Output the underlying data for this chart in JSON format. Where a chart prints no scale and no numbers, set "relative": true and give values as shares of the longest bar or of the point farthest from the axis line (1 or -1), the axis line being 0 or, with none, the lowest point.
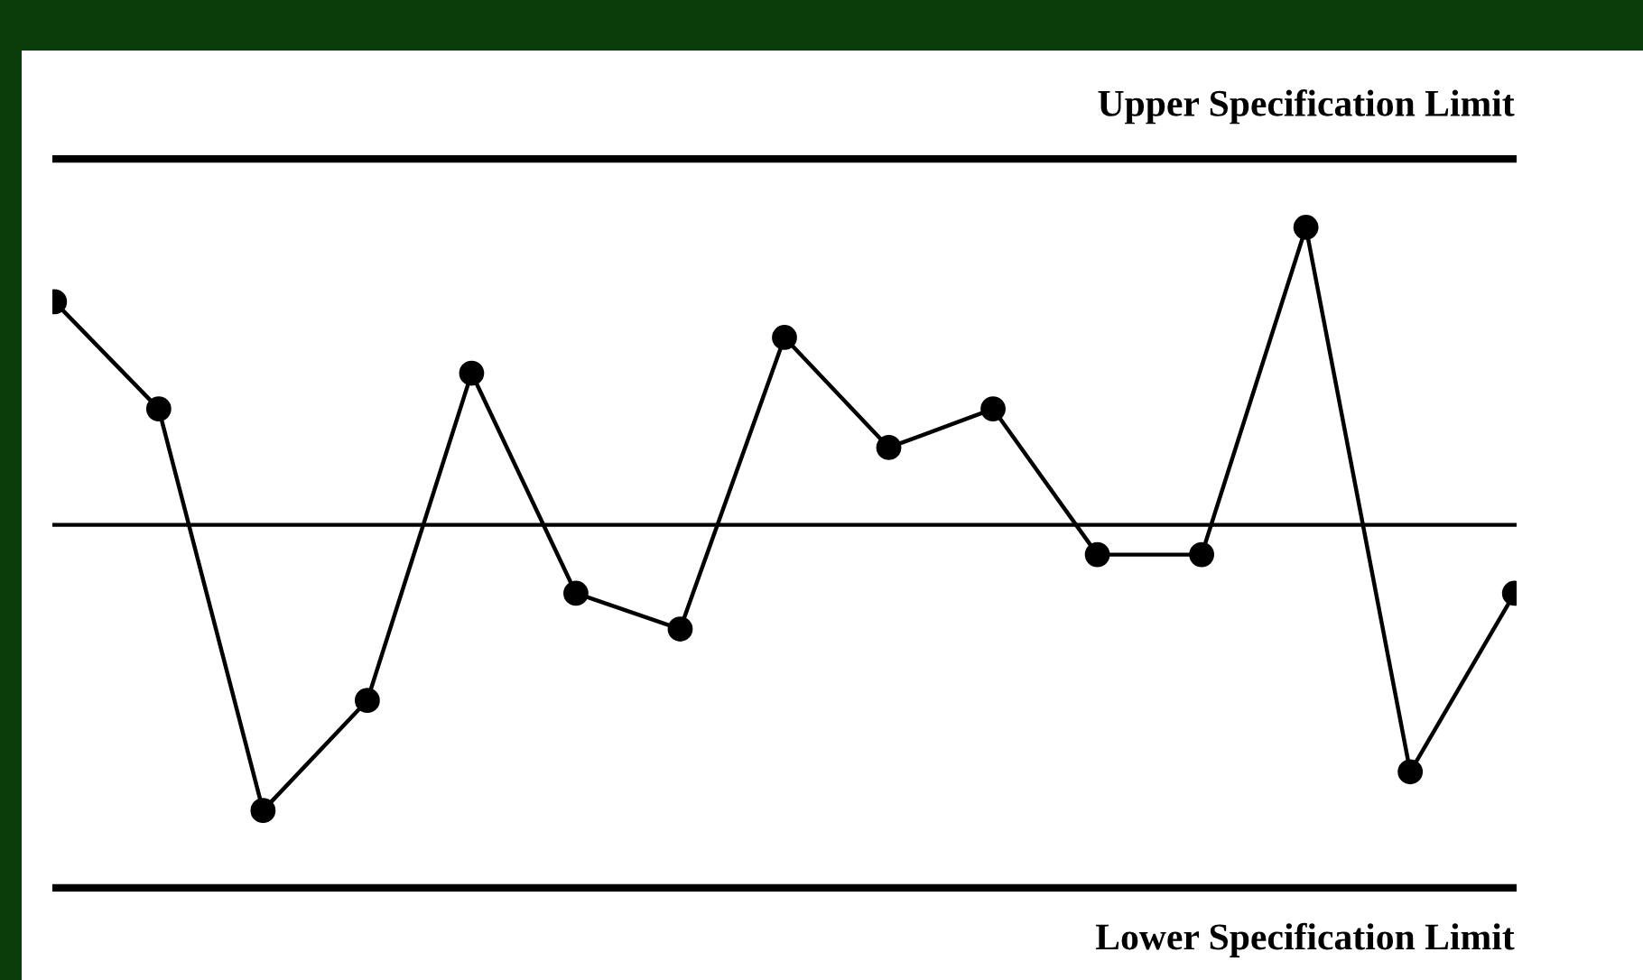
{
  "chart_data": {
    "type": "line",
    "relative": true,
    "categories": [
      null,
      null,
      null,
      null,
      null,
      null,
      null,
      null,
      null,
      null,
      null,
      null,
      null,
      null,
      null
    ],
    "series": [
      {
        "color": "#000000",
        "values": [
          0.75,
          0.39,
          -0.96,
          -0.59,
          0.51,
          -0.23,
          -0.35,
          0.63,
          0.26,
          0.39,
          -0.1,
          -0.1,
          1.0,
          -0.83,
          -0.23
        ]
      }
    ],
    "marker": "circle",
    "line_style": "solid",
    "ref_lines": [
      {
        "axis": "y",
        "value": 1.23,
        "label": "Upper Specification Limit",
        "color": "#000000"
      },
      {
        "axis": "y",
        "value": 0,
        "color": "#000000"
      },
      {
        "axis": "y",
        "value": -1.22,
        "label": "Lower Specification Limit",
        "color": "#000000"
      }
    ]
  }
}
